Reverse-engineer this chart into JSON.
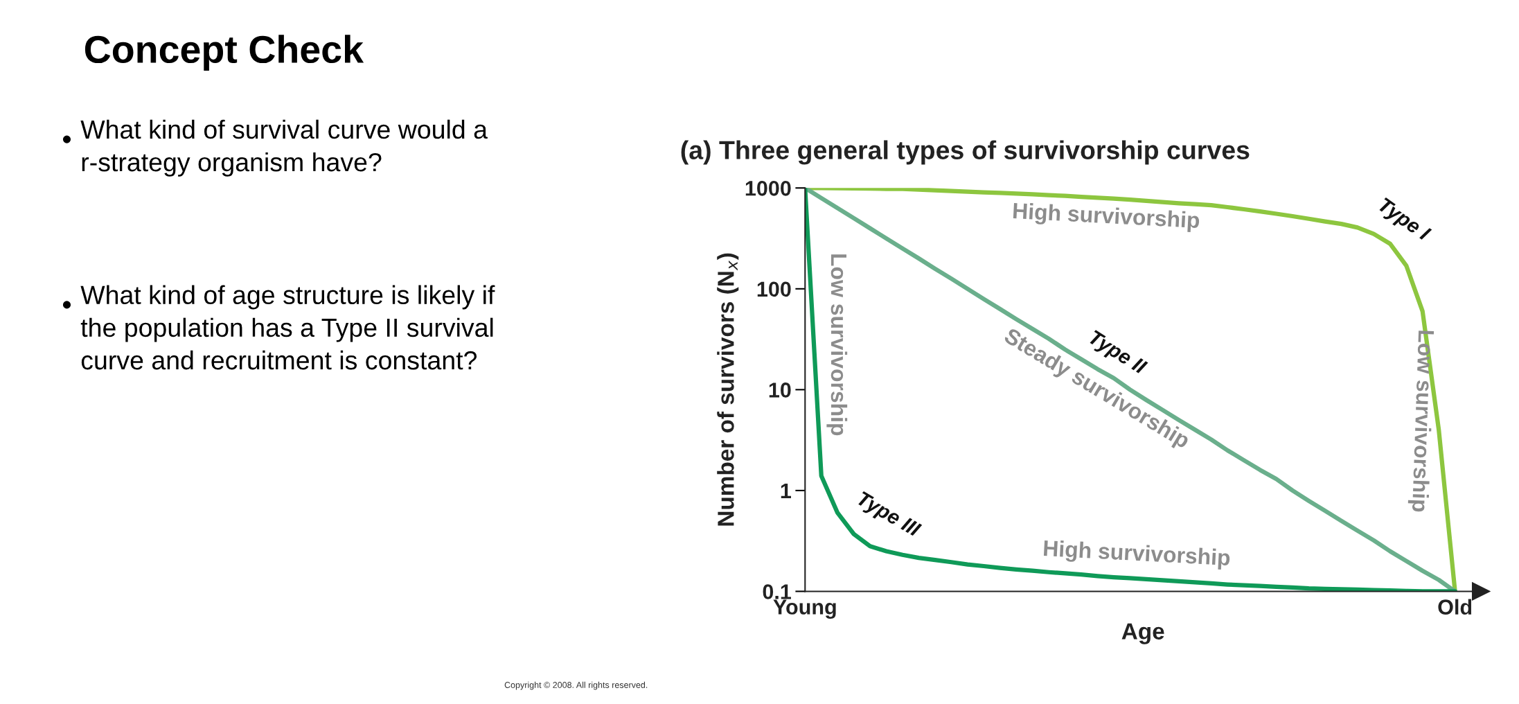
{
  "chart_data": {
    "type": "line",
    "title": "Concept Check",
    "subtitle": "(a) Three general types of survivorship curves",
    "xlabel": "Age",
    "ylabel": "Number of survivors (N$_{x}$)",
    "log": "y",
    "categories": [
      "Young",
      null,
      null,
      null,
      null,
      null,
      null,
      null,
      null,
      null,
      null,
      null,
      null,
      null,
      null,
      null,
      null,
      null,
      null,
      null,
      null,
      null,
      null,
      null,
      null,
      null,
      null,
      null,
      null,
      null,
      null,
      null,
      null,
      null,
      null,
      null,
      null,
      null,
      null,
      null,
      "Old"
    ],
    "ylim": [
      0.1,
      1000
    ],
    "yticks": [
      1000,
      100,
      10,
      1,
      0.1
    ],
    "grid": false,
    "legend": false,
    "marker": "none",
    "line_style": "solid",
    "series": [
      {
        "name": "Type I",
        "color": "#8dc63f",
        "values": [
          1000,
          997,
          993,
          990,
          985,
          980,
          977,
          965,
          950,
          935,
          920,
          905,
          893,
          880,
          865,
          850,
          835,
          815,
          800,
          785,
          765,
          745,
          725,
          705,
          690,
          675,
          645,
          615,
          585,
          555,
          525,
          495,
          465,
          440,
          405,
          350,
          280,
          170,
          60,
          4,
          0.1
        ]
      },
      {
        "name": "Type II",
        "color": "#6aaf8c",
        "values": [
          1000,
          794,
          631,
          501,
          398,
          316,
          251,
          200,
          158,
          126,
          100,
          79,
          63,
          50,
          40,
          32,
          25,
          20,
          16,
          13,
          10,
          7.9,
          6.3,
          5,
          4,
          3.2,
          2.5,
          2,
          1.6,
          1.3,
          1,
          0.79,
          0.63,
          0.5,
          0.4,
          0.32,
          0.25,
          0.2,
          0.16,
          0.13,
          0.1
        ]
      },
      {
        "name": "Type III",
        "color": "#0f9a58",
        "values": [
          1000,
          1.4,
          0.6,
          0.37,
          0.28,
          0.25,
          0.23,
          0.215,
          0.205,
          0.195,
          0.185,
          0.178,
          0.171,
          0.165,
          0.16,
          0.155,
          0.151,
          0.147,
          0.142,
          0.138,
          0.135,
          0.132,
          0.129,
          0.126,
          0.123,
          0.12,
          0.117,
          0.115,
          0.113,
          0.111,
          0.109,
          0.107,
          0.106,
          0.105,
          0.104,
          0.103,
          0.102,
          0.101,
          0.1,
          0.1,
          0.1
        ]
      }
    ],
    "annotations": [
      "High survivorship",
      "Low survivorship",
      "Steady survivorship",
      "Low survivorship",
      "High survivorship",
      "What kind of survival curve would a r-strategy organism have?",
      "What kind of age structure is likely if the population has a Type II survival curve and recruitment is constant?",
      "Copyright © 2008. All rights reserved."
    ]
  }
}
